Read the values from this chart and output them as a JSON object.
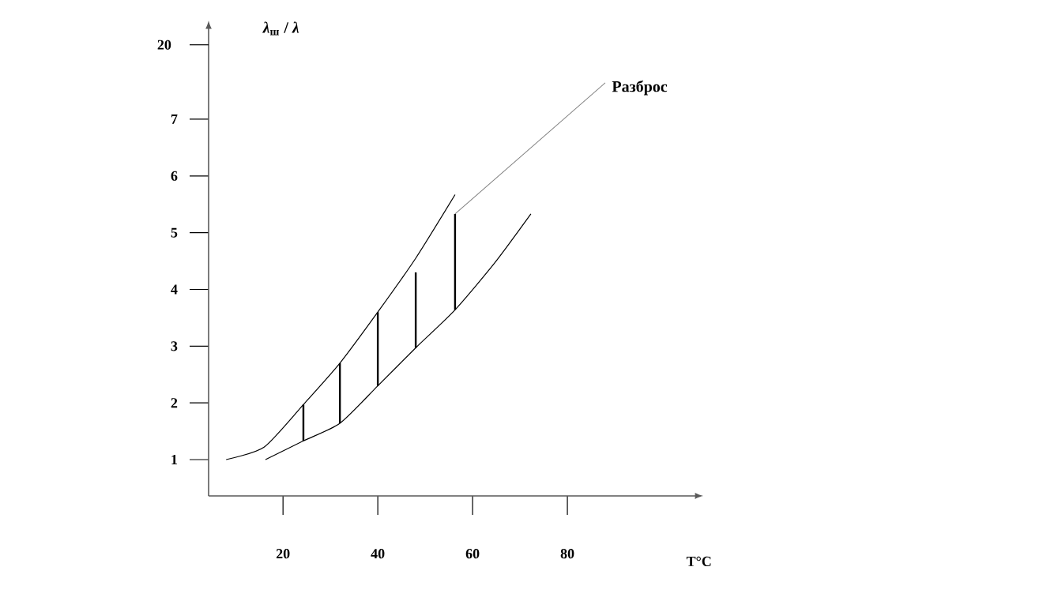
{
  "chart_data": {
    "type": "line",
    "xlabel": "T°C",
    "ylabel": "*λ*$_{ш}$ / *λ*",
    "xlim": [
      4.3,
      107
    ],
    "ylim": [
      0.36,
      8.6
    ],
    "xticks": [
      20,
      40,
      60,
      80
    ],
    "yticks": [
      1,
      2,
      3,
      4,
      5,
      6,
      7
    ],
    "series": [
      {
        "color": "#000000",
        "x": [
          8,
          16,
          24.3,
          32,
          40,
          48,
          56.3
        ],
        "values": [
          1.0,
          1.22,
          1.97,
          2.7,
          3.6,
          4.55,
          5.67
        ]
      },
      {
        "color": "#000000",
        "x": [
          16.3,
          24.3,
          32,
          40,
          48,
          56.3,
          64.7,
          72.3
        ],
        "values": [
          1.0,
          1.33,
          1.64,
          2.3,
          2.97,
          3.64,
          4.47,
          5.33
        ]
      },
      {
        "type": "bar",
        "color": "#000000",
        "x": [
          24.3,
          32,
          40,
          48,
          56.3
        ],
        "base": [
          1.33,
          1.64,
          2.3,
          2.97,
          3.64
        ],
        "values": [
          0.64,
          1.06,
          1.3,
          1.33,
          1.69
        ]
      }
    ],
    "annotations": [
      "20",
      {
        "text": "Разброс",
        "x": 56.3,
        "y": 5.33
      }
    ]
  }
}
